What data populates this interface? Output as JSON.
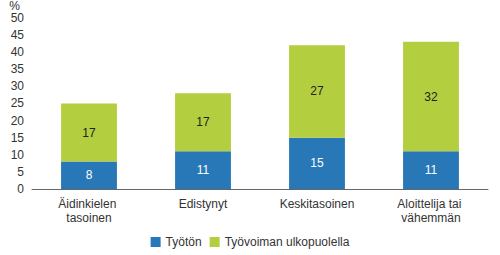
{
  "chart_data": {
    "type": "bar",
    "stacked": true,
    "data_labels": true,
    "grid": false,
    "legend": "bottom",
    "y_label": "%",
    "categories": [
      "Äidinkielen tasoinen",
      "Edistynyt",
      "Keskitasoinen",
      "Aloittelija tai vähemmän"
    ],
    "series": [
      {
        "name": "Työtön",
        "color": "#2878b8",
        "values": [
          8,
          11,
          15,
          11
        ]
      },
      {
        "name": "Työvoiman ulkopuolella",
        "color": "#b3cf3f",
        "values": [
          17,
          17,
          27,
          32
        ]
      }
    ],
    "ylim": [
      0,
      50
    ],
    "yticks": [
      0,
      5,
      10,
      15,
      20,
      25,
      30,
      35,
      40,
      45,
      50
    ]
  }
}
